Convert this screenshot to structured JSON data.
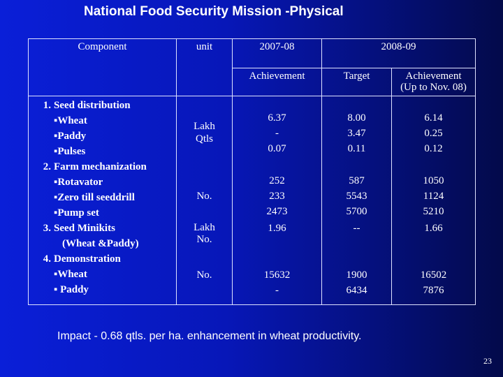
{
  "title": "National Food Security Mission -Physical",
  "headers": {
    "component": "Component",
    "unit": "unit",
    "year1": "2007-08",
    "year2": "2008-09",
    "achievement": "Achievement",
    "target": "Target",
    "achievement_upto_l1": "Achievement",
    "achievement_upto_l2": "(Up to Nov. 08)"
  },
  "items": [
    {
      "num": "1.",
      "name": "Seed distribution",
      "subs": [
        "▪Wheat",
        "▪Paddy",
        "▪Pulses"
      ]
    },
    {
      "num": "2.",
      "name": "Farm mechanization",
      "subs": [
        "▪Rotavator",
        "▪Zero till seeddrill",
        "▪Pump set"
      ]
    },
    {
      "num": "3.",
      "name": "Seed Minikits",
      "subs": [
        "(Wheat &Paddy)"
      ]
    },
    {
      "num": "4.",
      "name": "Demonstration",
      "subs": [
        "▪Wheat",
        "▪ Paddy"
      ]
    }
  ],
  "units": {
    "u1_l1": "Lakh",
    "u1_l2": "Qtls",
    "u2": "No.",
    "u3_l1": "Lakh",
    "u3_l2": "No.",
    "u4": "No."
  },
  "achievement_2007": {
    "a1": [
      "6.37",
      "-",
      "0.07"
    ],
    "a2": [
      "252",
      "233",
      "2473"
    ],
    "a3": [
      "1.96"
    ],
    "a4": [
      "15632",
      "-"
    ]
  },
  "target_2008": {
    "t1": [
      "8.00",
      "3.47",
      "0.11"
    ],
    "t2": [
      "587",
      "5543",
      "5700"
    ],
    "t3": [
      "--"
    ],
    "t4": [
      "1900",
      "6434"
    ]
  },
  "achievement_2008": {
    "b1": [
      "6.14",
      "0.25",
      "0.12"
    ],
    "b2": [
      "1050",
      "1124",
      "5210"
    ],
    "b3": [
      "1.66"
    ],
    "b4": [
      "16502",
      "7876"
    ]
  },
  "impact": "Impact - 0.68 qtls. per ha. enhancement in wheat productivity.",
  "page_number": "23"
}
